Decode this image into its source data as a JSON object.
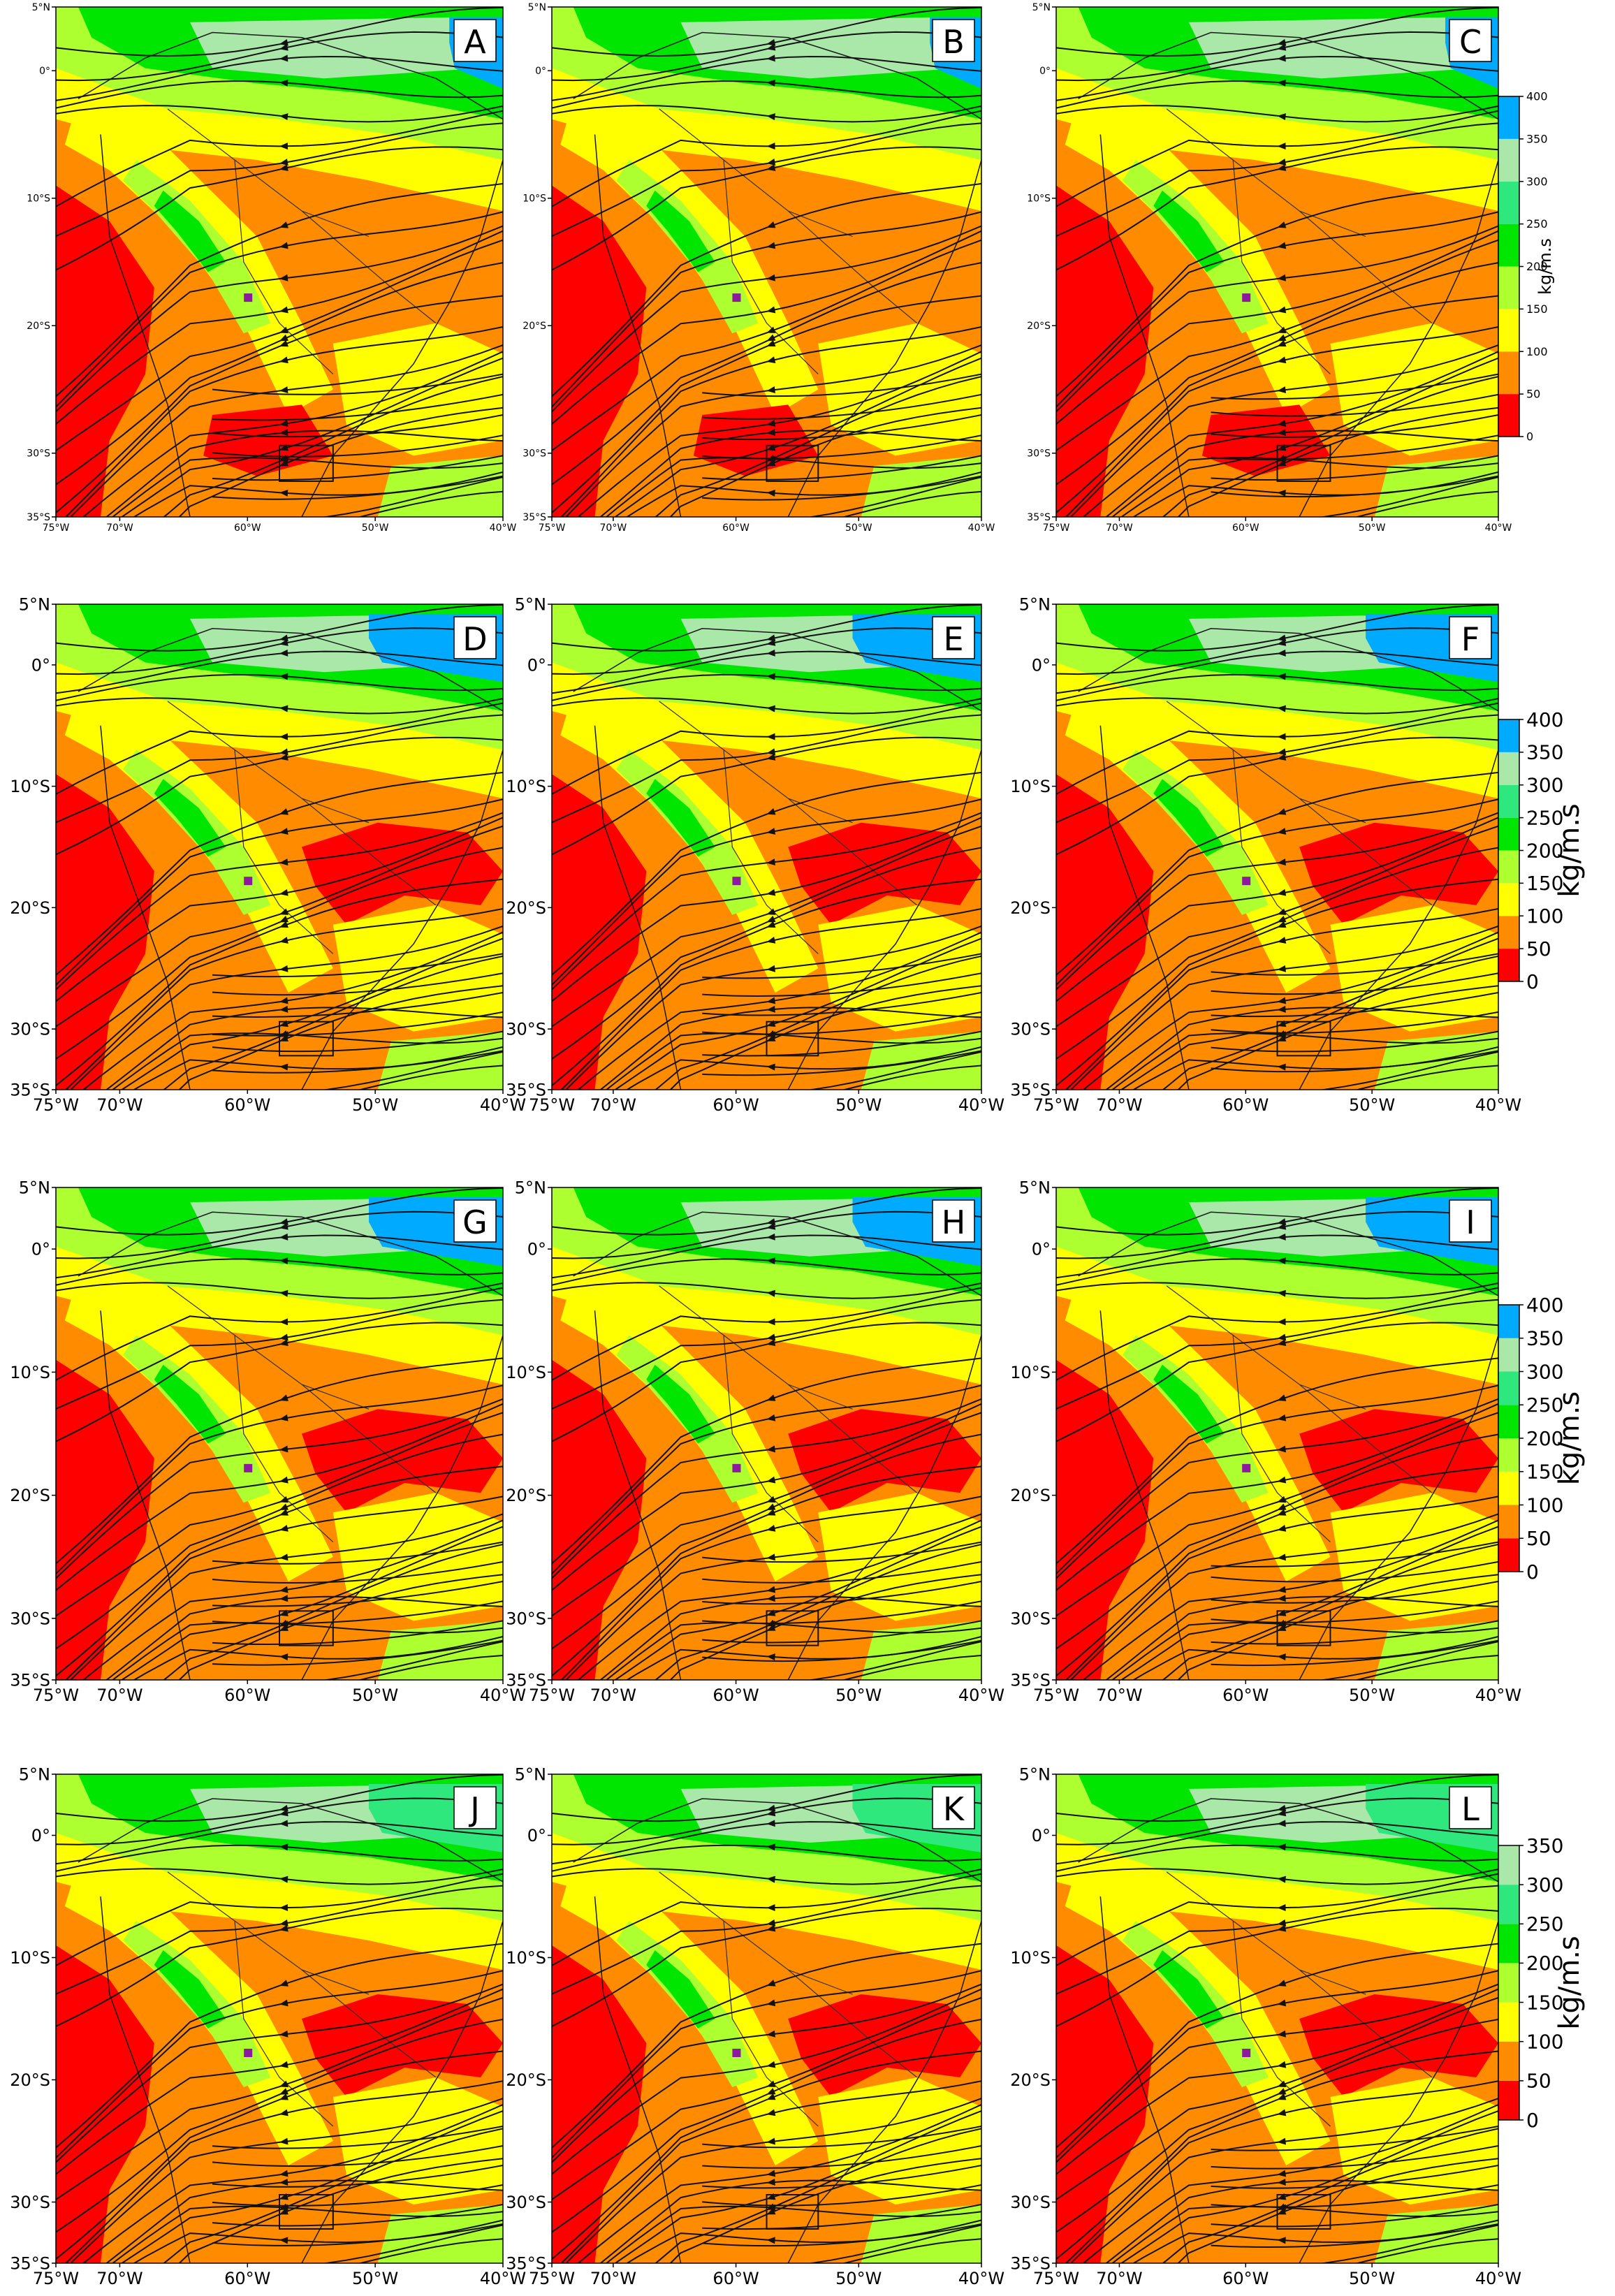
{
  "figure": {
    "units": "kg/m.s",
    "lat_ticks": [
      "5°N",
      "0°",
      "10°S",
      "20°S",
      "30°S",
      "35°S"
    ],
    "lon_ticks": [
      "75°W",
      "70°W",
      "60°W",
      "50°W",
      "40°W"
    ],
    "extent": {
      "lon": [
        -75,
        -40
      ],
      "lat": [
        -35,
        5
      ]
    },
    "colorbars": [
      {
        "row": 0,
        "ticks": [
          "0",
          "50",
          "100",
          "150",
          "200",
          "250",
          "300",
          "350",
          "400"
        ]
      },
      {
        "row": 1,
        "ticks": [
          "0",
          "50",
          "100",
          "150",
          "200",
          "250",
          "300",
          "350",
          "400"
        ]
      },
      {
        "row": 2,
        "ticks": [
          "0",
          "50",
          "100",
          "150",
          "200",
          "250",
          "300",
          "350",
          "400"
        ]
      },
      {
        "row": 3,
        "ticks": [
          "0",
          "50",
          "100",
          "150",
          "200",
          "250",
          "300",
          "350"
        ]
      }
    ],
    "color_levels": [
      {
        "range": "0-50",
        "color": "#ff0000"
      },
      {
        "range": "50-100",
        "color": "#ff8c00"
      },
      {
        "range": "100-150",
        "color": "#ffff00"
      },
      {
        "range": "150-200",
        "color": "#adff2f"
      },
      {
        "range": "200-250",
        "color": "#00e600"
      },
      {
        "range": "250-300",
        "color": "#2ee87e"
      },
      {
        "range": "300-350",
        "color": "#a9e8a9"
      },
      {
        "range": "350-400",
        "color": "#00aaff"
      }
    ],
    "panels": [
      {
        "label": "A"
      },
      {
        "label": "B"
      },
      {
        "label": "C"
      },
      {
        "label": "D"
      },
      {
        "label": "E"
      },
      {
        "label": "F"
      },
      {
        "label": "G"
      },
      {
        "label": "H"
      },
      {
        "label": "I"
      },
      {
        "label": "J"
      },
      {
        "label": "K"
      },
      {
        "label": "L"
      }
    ],
    "marker_color": "#8b1a9e"
  }
}
